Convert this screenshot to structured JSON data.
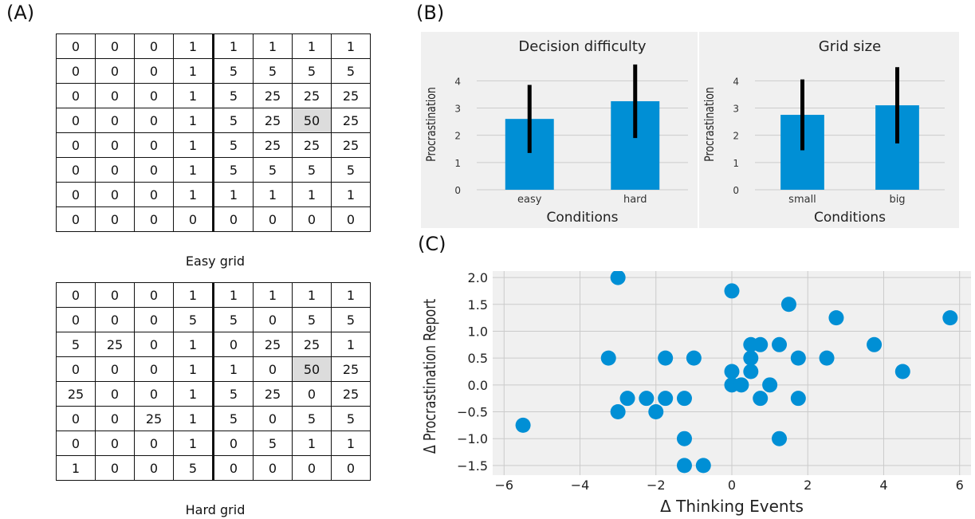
{
  "panels": {
    "a": "(A)",
    "b": "(B)",
    "c": "(C)"
  },
  "grids": {
    "easy": {
      "caption": "Easy grid",
      "highlight": [
        3,
        6
      ],
      "rows": [
        [
          "0",
          "0",
          "0",
          "1",
          "1",
          "1",
          "1",
          "1"
        ],
        [
          "0",
          "0",
          "0",
          "1",
          "5",
          "5",
          "5",
          "5"
        ],
        [
          "0",
          "0",
          "0",
          "1",
          "5",
          "25",
          "25",
          "25"
        ],
        [
          "0",
          "0",
          "0",
          "1",
          "5",
          "25",
          "50",
          "25"
        ],
        [
          "0",
          "0",
          "0",
          "1",
          "5",
          "25",
          "25",
          "25"
        ],
        [
          "0",
          "0",
          "0",
          "1",
          "5",
          "5",
          "5",
          "5"
        ],
        [
          "0",
          "0",
          "0",
          "1",
          "1",
          "1",
          "1",
          "1"
        ],
        [
          "0",
          "0",
          "0",
          "0",
          "0",
          "0",
          "0",
          "0"
        ]
      ]
    },
    "hard": {
      "caption": "Hard grid",
      "highlight": [
        3,
        6
      ],
      "rows": [
        [
          "0",
          "0",
          "0",
          "1",
          "1",
          "1",
          "1",
          "1"
        ],
        [
          "0",
          "0",
          "0",
          "5",
          "5",
          "0",
          "5",
          "5"
        ],
        [
          "5",
          "25",
          "0",
          "1",
          "0",
          "25",
          "25",
          "1"
        ],
        [
          "0",
          "0",
          "0",
          "1",
          "1",
          "0",
          "50",
          "25"
        ],
        [
          "25",
          "0",
          "0",
          "1",
          "5",
          "25",
          "0",
          "25"
        ],
        [
          "0",
          "0",
          "25",
          "1",
          "5",
          "0",
          "5",
          "5"
        ],
        [
          "0",
          "0",
          "0",
          "1",
          "0",
          "5",
          "1",
          "1"
        ],
        [
          "1",
          "0",
          "0",
          "5",
          "0",
          "0",
          "0",
          "0"
        ]
      ]
    }
  },
  "chart_data": [
    {
      "type": "bar",
      "title": "Decision difficulty",
      "xlabel": "Conditions",
      "ylabel": "Procrastination",
      "categories": [
        "easy",
        "hard"
      ],
      "values": [
        2.6,
        3.25
      ],
      "error_low": [
        1.35,
        1.9
      ],
      "error_high": [
        3.85,
        4.6
      ],
      "ylim": [
        0,
        4.8
      ],
      "yticks": [
        0,
        1,
        2,
        3,
        4
      ],
      "color": "#008fd5",
      "background": "#f0f0f0"
    },
    {
      "type": "bar",
      "title": "Grid size",
      "xlabel": "Conditions",
      "ylabel": "Procrastination",
      "categories": [
        "small",
        "big"
      ],
      "values": [
        2.75,
        3.1
      ],
      "error_low": [
        1.45,
        1.7
      ],
      "error_high": [
        4.05,
        4.5
      ],
      "ylim": [
        0,
        4.8
      ],
      "yticks": [
        0,
        1,
        2,
        3,
        4
      ],
      "color": "#008fd5",
      "background": "#f0f0f0"
    },
    {
      "type": "scatter",
      "xlabel": "Δ Thinking Events",
      "ylabel": "Δ Procrastination Report",
      "xlim": [
        -6.3,
        6.3
      ],
      "ylim": [
        -1.68,
        2.12
      ],
      "xticks": [
        -6,
        -4,
        -2,
        0,
        2,
        4,
        6
      ],
      "yticks": [
        -1.5,
        -1.0,
        -0.5,
        0.0,
        0.5,
        1.0,
        1.5,
        2.0
      ],
      "grid": true,
      "color": "#008fd5",
      "background": "#f0f0f0",
      "points": [
        {
          "x": -3.0,
          "y": 2.0
        },
        {
          "x": 0.0,
          "y": 1.75
        },
        {
          "x": 1.5,
          "y": 1.5
        },
        {
          "x": 2.75,
          "y": 1.25
        },
        {
          "x": 5.75,
          "y": 1.25
        },
        {
          "x": 0.5,
          "y": 0.75
        },
        {
          "x": 0.75,
          "y": 0.75
        },
        {
          "x": 1.25,
          "y": 0.75
        },
        {
          "x": 3.75,
          "y": 0.75
        },
        {
          "x": -3.25,
          "y": 0.5
        },
        {
          "x": -1.75,
          "y": 0.5
        },
        {
          "x": -1.0,
          "y": 0.5
        },
        {
          "x": 0.5,
          "y": 0.5
        },
        {
          "x": 1.75,
          "y": 0.5
        },
        {
          "x": 2.5,
          "y": 0.5
        },
        {
          "x": 0.0,
          "y": 0.25
        },
        {
          "x": 0.5,
          "y": 0.25
        },
        {
          "x": 4.5,
          "y": 0.25
        },
        {
          "x": 0.0,
          "y": 0.0
        },
        {
          "x": 0.25,
          "y": 0.0
        },
        {
          "x": 1.0,
          "y": 0.0
        },
        {
          "x": -2.75,
          "y": -0.25
        },
        {
          "x": -2.25,
          "y": -0.25
        },
        {
          "x": -1.75,
          "y": -0.25
        },
        {
          "x": -1.25,
          "y": -0.25
        },
        {
          "x": 0.75,
          "y": -0.25
        },
        {
          "x": 1.75,
          "y": -0.25
        },
        {
          "x": -3.0,
          "y": -0.5
        },
        {
          "x": -2.0,
          "y": -0.5
        },
        {
          "x": -5.5,
          "y": -0.75
        },
        {
          "x": -1.25,
          "y": -1.0
        },
        {
          "x": 1.25,
          "y": -1.0
        },
        {
          "x": -1.25,
          "y": -1.5
        },
        {
          "x": -0.75,
          "y": -1.5
        }
      ]
    }
  ]
}
